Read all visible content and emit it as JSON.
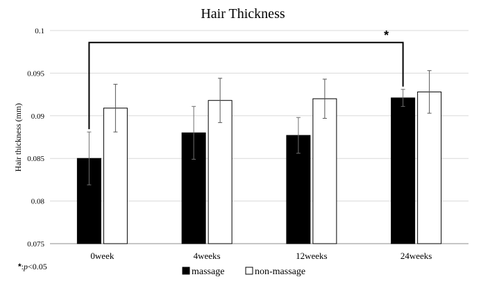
{
  "chart_data": {
    "type": "bar",
    "title": "Hair Thickness",
    "xlabel": "",
    "ylabel": "Hair thickness (mm)",
    "ylim": [
      0.075,
      0.1
    ],
    "yticks": [
      0.075,
      0.08,
      0.085,
      0.09,
      0.095,
      0.1
    ],
    "ytick_labels": [
      "0.075",
      "0.08",
      "0.085",
      "0.09",
      "0.095",
      "0.1"
    ],
    "categories": [
      "0week",
      "4weeks",
      "12weeks",
      "24weeks"
    ],
    "series": [
      {
        "name": "massage",
        "color": "#000000",
        "values": [
          0.085,
          0.088,
          0.0877,
          0.0921
        ],
        "error": [
          0.0031,
          0.0031,
          0.0021,
          0.001
        ]
      },
      {
        "name": "non-massage",
        "color": "#ffffff",
        "values": [
          0.0909,
          0.0918,
          0.092,
          0.0928
        ],
        "error": [
          0.0028,
          0.0026,
          0.0023,
          0.0025
        ]
      }
    ],
    "grid": true,
    "legend_position": "bottom-center",
    "annotation": {
      "from_category": "0week",
      "to_category": "24weeks",
      "level": 0.0986,
      "symbol": "*"
    },
    "footnote": {
      "symbol": "*",
      "text": ":",
      "p_italic": "p",
      "threshold": "<0.05"
    }
  }
}
